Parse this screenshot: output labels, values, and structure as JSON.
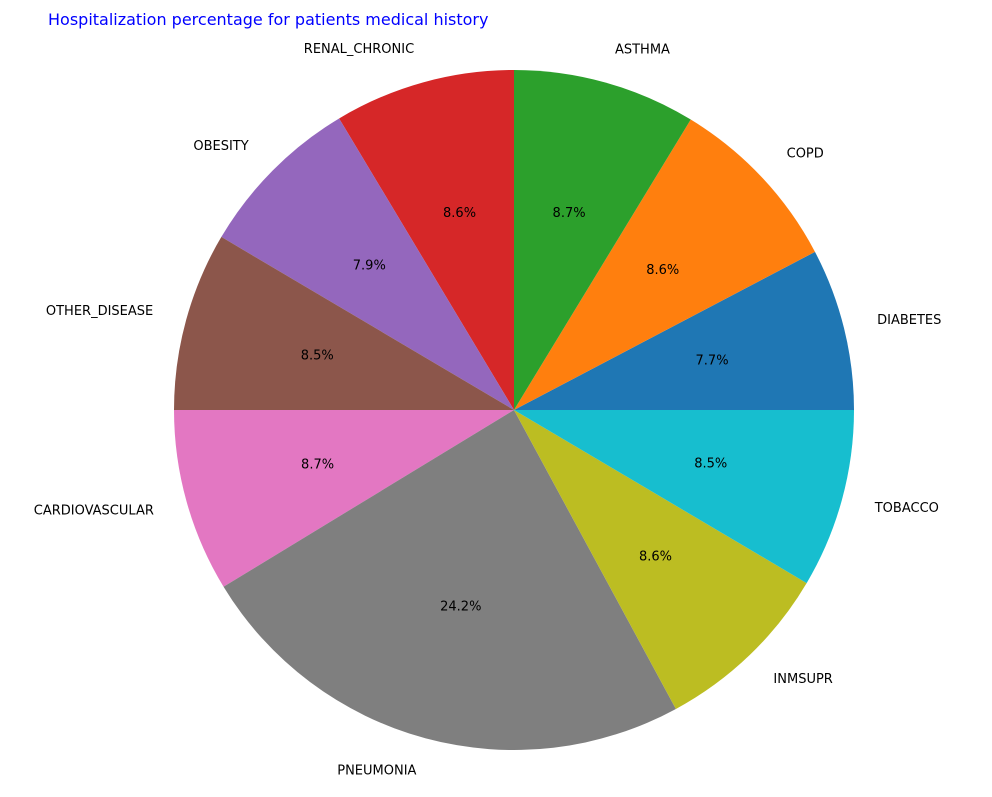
{
  "chart_data": {
    "type": "pie",
    "title": "Hospitalization percentage for patients medical history",
    "title_color": "#0000ff",
    "start_angle_deg": 0,
    "direction": "counterclockwise",
    "slices": [
      {
        "label": "DIABETES",
        "value": 7.7,
        "pct_label": "7.7%",
        "color": "#1f77b4"
      },
      {
        "label": "COPD",
        "value": 8.6,
        "pct_label": "8.6%",
        "color": "#ff7f0e"
      },
      {
        "label": "ASTHMA",
        "value": 8.7,
        "pct_label": "8.7%",
        "color": "#2ca02c"
      },
      {
        "label": "RENAL_CHRONIC",
        "value": 8.6,
        "pct_label": "8.6%",
        "color": "#d62728"
      },
      {
        "label": "OBESITY",
        "value": 7.9,
        "pct_label": "7.9%",
        "color": "#9467bd"
      },
      {
        "label": "OTHER_DISEASE",
        "value": 8.5,
        "pct_label": "8.5%",
        "color": "#8c564b"
      },
      {
        "label": "CARDIOVASCULAR",
        "value": 8.7,
        "pct_label": "8.7%",
        "color": "#e377c2"
      },
      {
        "label": "PNEUMONIA",
        "value": 24.2,
        "pct_label": "24.2%",
        "color": "#7f7f7f"
      },
      {
        "label": "INMSUPR",
        "value": 8.6,
        "pct_label": "8.6%",
        "color": "#bcbd22"
      },
      {
        "label": "TOBACCO",
        "value": 8.5,
        "pct_label": "8.5%",
        "color": "#17becf"
      }
    ]
  }
}
